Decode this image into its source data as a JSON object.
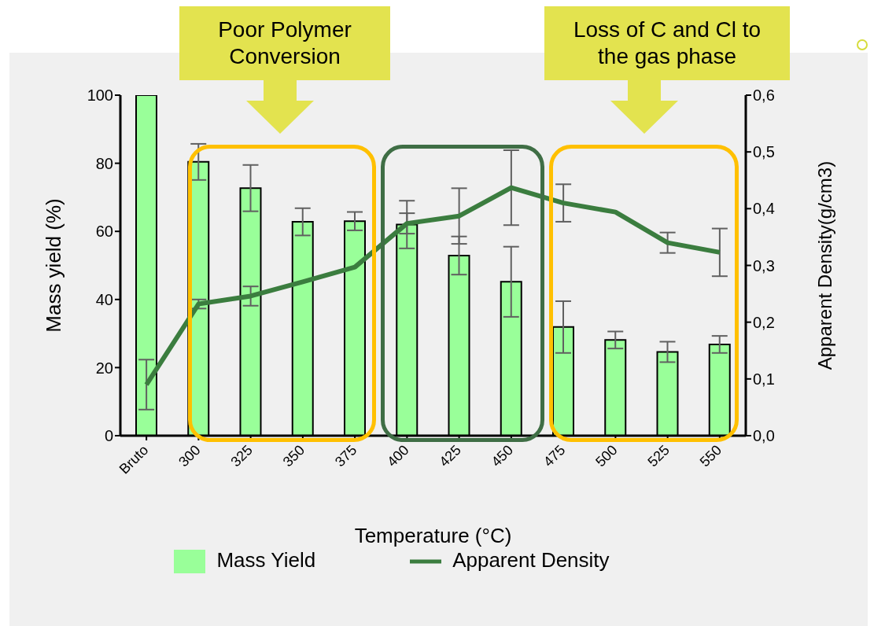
{
  "chart_data": {
    "type": "bar",
    "xlabel": "Temperature (°C)",
    "ylabel": "Mass yield (%)",
    "y2label": "Apparent Density(g/cm3)",
    "categories": [
      "Bruto",
      "300",
      "325",
      "350",
      "375",
      "400",
      "425",
      "450",
      "475",
      "500",
      "525",
      "550"
    ],
    "series": [
      {
        "name": "Mass Yield",
        "color": "#99ff99",
        "values": [
          100,
          80.4,
          72.7,
          62.8,
          63,
          62,
          52.9,
          45.2,
          31.9,
          28.1,
          24.6,
          26.8
        ],
        "errors": [
          null,
          5.3,
          6.8,
          4,
          2.7,
          7,
          5.6,
          10.3,
          7.6,
          2.5,
          3,
          2.5
        ]
      },
      {
        "name": "Apparent Density",
        "type": "line",
        "axis": "y2",
        "color": "#3b7d3f",
        "values": [
          0.09,
          0.232,
          0.246,
          0.271,
          0.297,
          0.374,
          0.387,
          0.437,
          0.41,
          0.394,
          0.34,
          0.323
        ],
        "errors": [
          0.044,
          0.008,
          0.017,
          null,
          null,
          0.018,
          0.049,
          0.066,
          0.033,
          null,
          0.018,
          0.042
        ]
      }
    ],
    "ylim": [
      0,
      100
    ],
    "yticks": [
      0,
      20,
      40,
      60,
      80,
      100
    ],
    "y2lim": [
      0,
      0.6
    ],
    "y2ticks": [
      {
        "value": 0,
        "label": "0,0"
      },
      {
        "value": 0.1,
        "label": "0,1"
      },
      {
        "value": 0.2,
        "label": "0,2"
      },
      {
        "value": 0.3,
        "label": "0,3"
      },
      {
        "value": 0.4,
        "label": "0,4"
      },
      {
        "value": 0.5,
        "label": "0,5"
      },
      {
        "value": 0.6,
        "label": "0,6"
      }
    ],
    "annotations": [
      "Poor Polymer Conversion",
      "Loss of C and Cl to the gas phase"
    ],
    "marker": "none",
    "grid": false,
    "legend": "bottom"
  }
}
